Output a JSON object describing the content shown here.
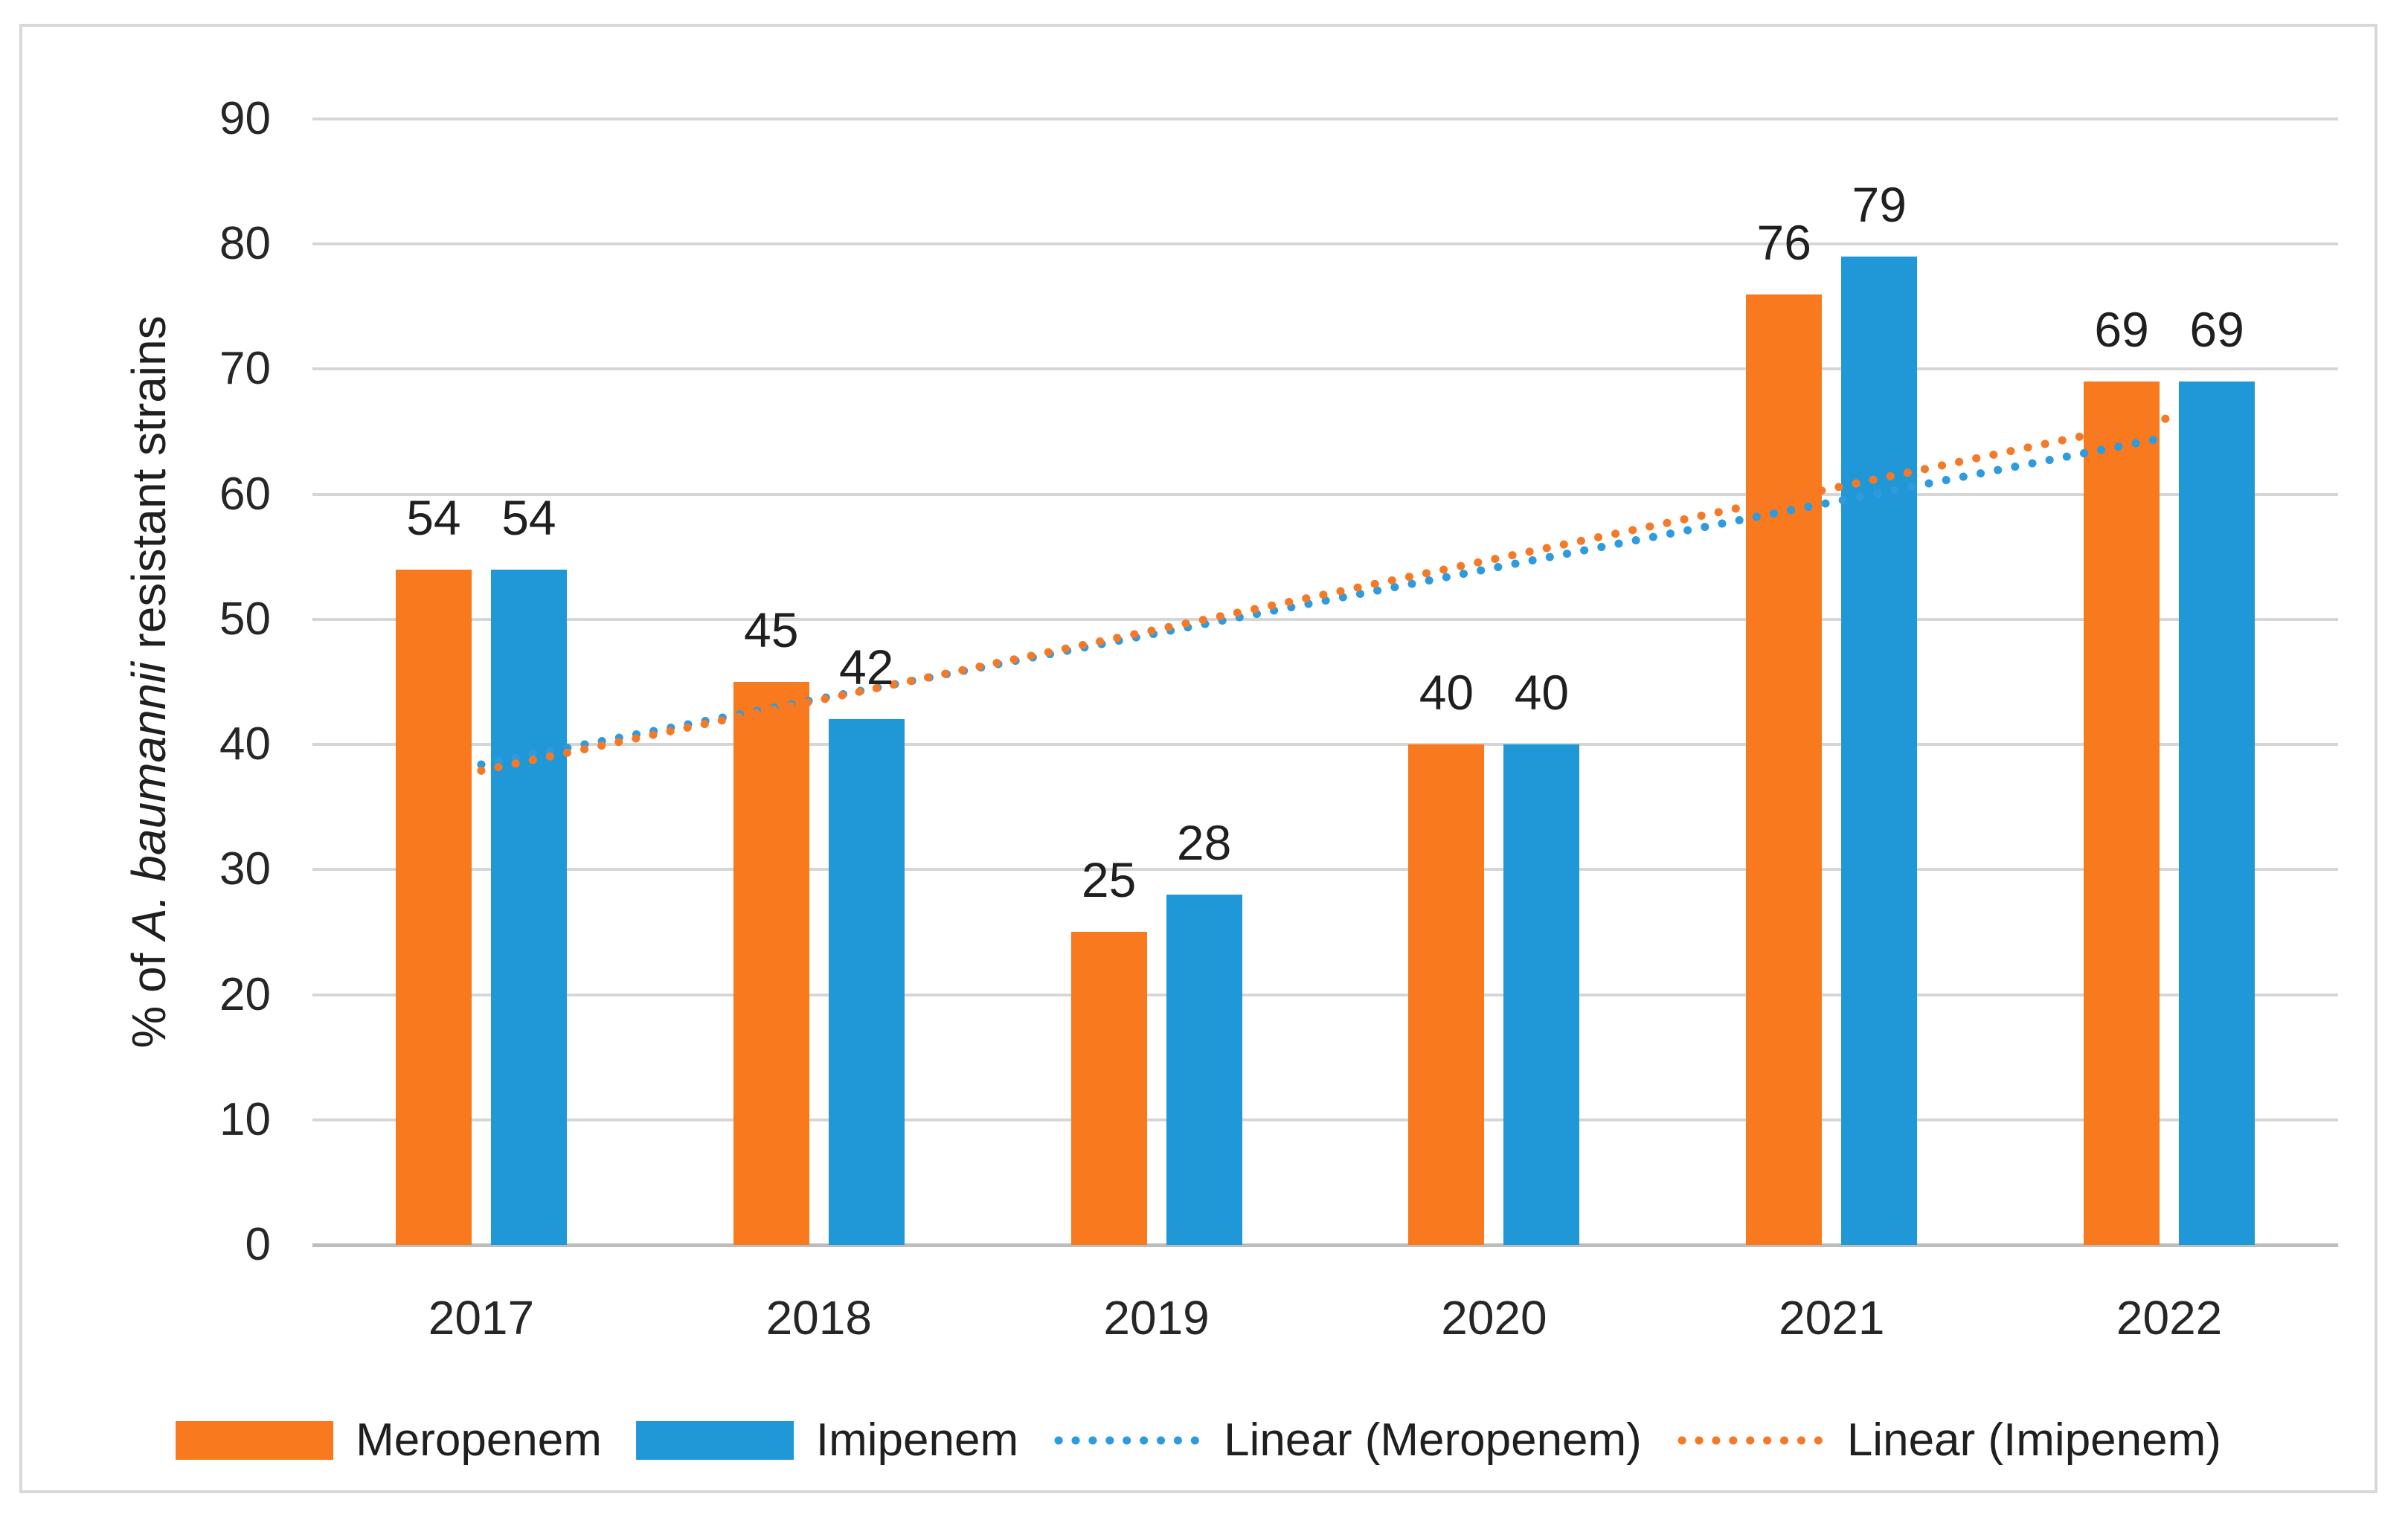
{
  "chart_data": {
    "type": "bar",
    "categories": [
      "2017",
      "2018",
      "2019",
      "2020",
      "2021",
      "2022"
    ],
    "series": [
      {
        "name": "Meropenem",
        "color": "#F8791E",
        "values": [
          54,
          45,
          25,
          40,
          76,
          69
        ]
      },
      {
        "name": "Imipenem",
        "color": "#2098D8",
        "values": [
          54,
          42,
          28,
          40,
          79,
          69
        ]
      }
    ],
    "trendlines": [
      {
        "name": "Linear (Meropenem)",
        "color": "#2E9BDE",
        "style": "dotted",
        "start_value": 38.4,
        "end_value": 64.6
      },
      {
        "name": "Linear (Imipenem)",
        "color": "#F57A28",
        "style": "dotted",
        "start_value": 37.9,
        "end_value": 66.1
      }
    ],
    "ylabel_prefix": "% of ",
    "ylabel_italic": "A. baumannii",
    "ylabel_suffix": " resistant strains",
    "ylim": [
      0,
      90
    ],
    "yticks": [
      0,
      10,
      20,
      30,
      40,
      50,
      60,
      70,
      80,
      90
    ],
    "grid": true,
    "legend_position": "bottom",
    "legend": [
      {
        "label": "Meropenem",
        "swatch": "bar",
        "color": "#F8791E"
      },
      {
        "label": "Imipenem",
        "swatch": "bar",
        "color": "#2098D8"
      },
      {
        "label": "Linear (Meropenem)",
        "swatch": "dotted-line",
        "color": "#2E9BDE"
      },
      {
        "label": "Linear (Imipenem)",
        "swatch": "dotted-line",
        "color": "#F57A28"
      }
    ]
  },
  "style_colors": {
    "gridline": "#D6D6D6",
    "axis_line": "#BDBDBD",
    "frame_border": "#D8D8D8",
    "text": "#1F1F1F",
    "background": "#FFFFFF"
  }
}
